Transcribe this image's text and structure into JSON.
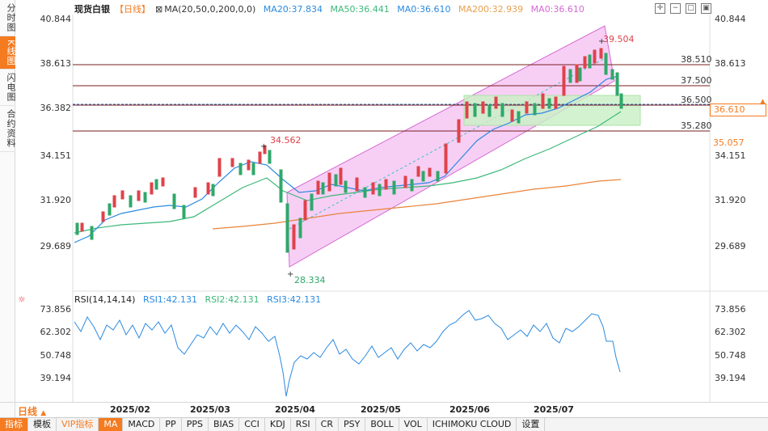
{
  "left_tabs": [
    {
      "label": "分时图",
      "active": false
    },
    {
      "label": "K线图",
      "active": true
    },
    {
      "label": "闪电图",
      "active": false
    },
    {
      "label": "合约资料",
      "active": false
    }
  ],
  "header": {
    "title": "现货白银",
    "period": "【日线】",
    "ma_params": "MA(20,50,0,200,0,0)",
    "ma20": "MA20:37.834",
    "ma50": "MA50:36.441",
    "ma0": "MA0:36.610",
    "ma200": "MA200:32.939",
    "ma0b": "MA0:36.610"
  },
  "price_axis": [
    "40.844",
    "38.613",
    "36.382",
    "34.151",
    "31.920",
    "29.689"
  ],
  "level_labels": [
    "38.510",
    "37.500",
    "36.500",
    "35.280"
  ],
  "current_price": "36.610",
  "secondary_price": "35.057",
  "annotations": {
    "high": "39.504",
    "low": "28.334",
    "mid_high": "34.562"
  },
  "rsi": {
    "title": "RSI(14,14,14)",
    "rsi1": "RSI1:42.131",
    "rsi2": "RSI2:42.131",
    "rsi3": "RSI3:42.131",
    "axis": [
      "73.856",
      "62.302",
      "50.748",
      "39.194"
    ]
  },
  "dates": [
    "2025/02",
    "2025/03",
    "2025/04",
    "2025/05",
    "2025/06",
    "2025/07"
  ],
  "period_select": "日线",
  "bottom_tabs": [
    {
      "label": "指标",
      "style": "orange"
    },
    {
      "label": "模板",
      "style": ""
    },
    {
      "label": "VIP指标",
      "style": "vip"
    },
    {
      "label": "MA",
      "style": "ma"
    },
    {
      "label": "MACD",
      "style": ""
    },
    {
      "label": "PP",
      "style": ""
    },
    {
      "label": "PPS",
      "style": ""
    },
    {
      "label": "BIAS",
      "style": ""
    },
    {
      "label": "CCI",
      "style": ""
    },
    {
      "label": "KDJ",
      "style": ""
    },
    {
      "label": "RSI",
      "style": ""
    },
    {
      "label": "CR",
      "style": ""
    },
    {
      "label": "PSY",
      "style": ""
    },
    {
      "label": "BOLL",
      "style": ""
    },
    {
      "label": "VOL",
      "style": ""
    },
    {
      "label": "ICHIMOKU CLOUD",
      "style": ""
    },
    {
      "label": "设置",
      "style": ""
    }
  ],
  "colors": {
    "up": "#e0424a",
    "down": "#2fa86a",
    "accent": "#f47b20",
    "ma20": "#2b8ae0",
    "ma50": "#3cb87a",
    "ma200": "#e8843a",
    "channel": "#f0a8ec",
    "box": "#c8f0c4"
  }
}
